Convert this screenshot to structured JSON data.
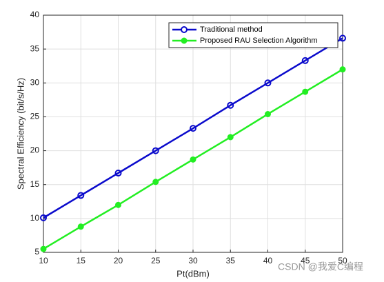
{
  "chart_data": {
    "type": "line",
    "xlabel": "Pt(dBm)",
    "ylabel": "Spectral Efficiency (bit/s/Hz)",
    "x": [
      10,
      15,
      20,
      25,
      30,
      35,
      40,
      45,
      50
    ],
    "series": [
      {
        "name": "Traditional method",
        "color": "#0a0acc",
        "marker": "open-circle",
        "values": [
          10.1,
          13.4,
          16.7,
          20.0,
          23.3,
          26.7,
          30.0,
          33.3,
          36.6
        ]
      },
      {
        "name": "Proposed RAU Selection  Algorithm",
        "color": "#22ee22",
        "marker": "filled-circle",
        "values": [
          5.5,
          8.8,
          12.0,
          15.4,
          18.7,
          22.0,
          25.4,
          28.7,
          32.0
        ]
      }
    ],
    "xlim": [
      10,
      50
    ],
    "xticks": [
      10,
      15,
      20,
      25,
      30,
      35,
      40,
      45,
      50
    ],
    "ylim": [
      5,
      40
    ],
    "yticks": [
      5,
      10,
      15,
      20,
      25,
      30,
      35,
      40
    ],
    "grid": true,
    "legend": "northeast",
    "watermark": "CSDN @我爱C编程"
  }
}
